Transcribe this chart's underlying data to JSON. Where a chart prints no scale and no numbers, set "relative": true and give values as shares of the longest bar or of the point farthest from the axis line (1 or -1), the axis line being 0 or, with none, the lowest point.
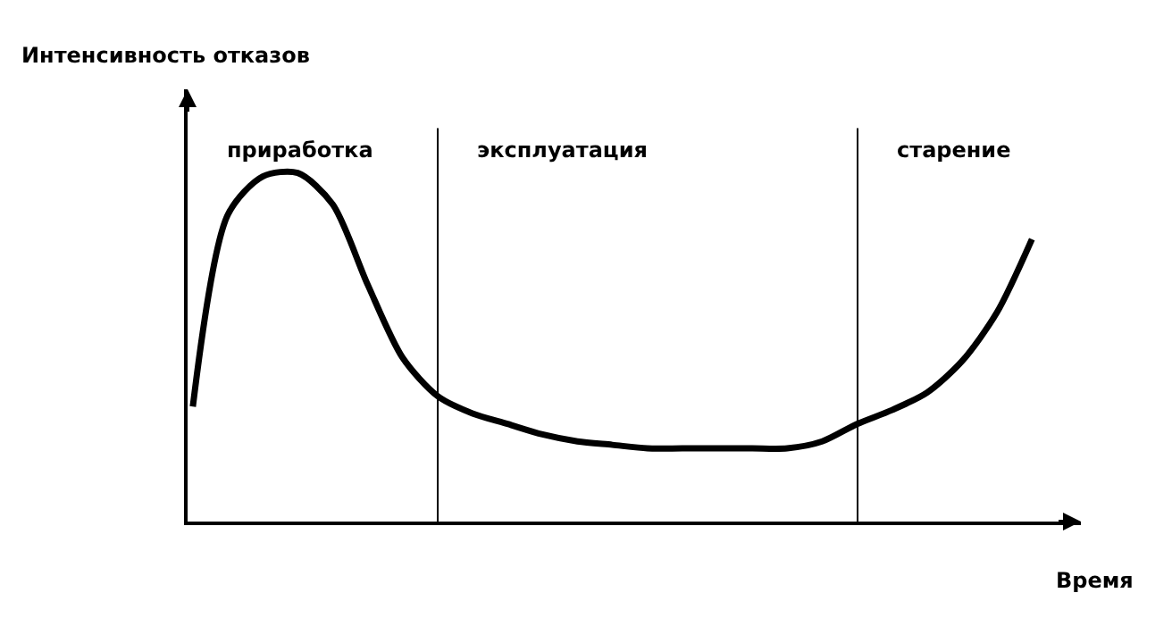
{
  "chart_data": {
    "type": "line",
    "relative": true,
    "xlabel": "Время",
    "categories": [
      null,
      null,
      null,
      null,
      null,
      null,
      null,
      null,
      null,
      null,
      null,
      null,
      null,
      null,
      null,
      null,
      null,
      null,
      null,
      null,
      null,
      null,
      null,
      null,
      null
    ],
    "series": [
      {
        "color": "#000000",
        "values": [
          0.33,
          0.88,
          0.99,
          1.0,
          0.91,
          0.68,
          0.47,
          0.36,
          0.31,
          0.28,
          0.25,
          0.23,
          0.22,
          0.21,
          0.21,
          0.21,
          0.21,
          0.21,
          0.23,
          0.28,
          0.32,
          0.37,
          0.46,
          0.6,
          0.81
        ]
      }
    ],
    "annotations": [
      "Интенсивность отказов",
      "приработка",
      "эксплуатация",
      "старение"
    ],
    "legend": false,
    "marker": "none",
    "line_style": "solid"
  }
}
